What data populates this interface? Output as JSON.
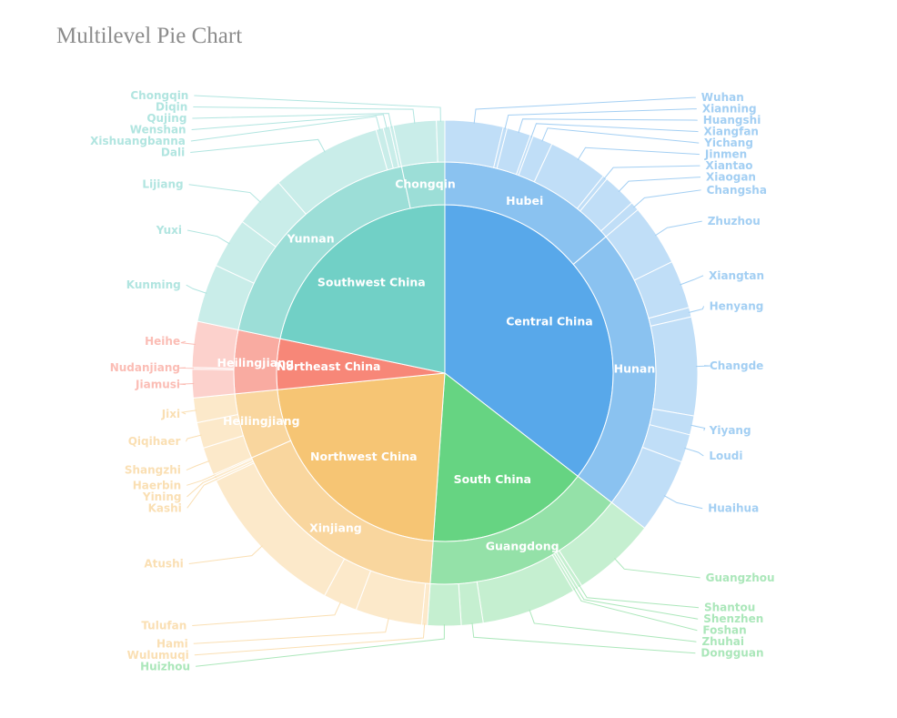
{
  "title": "Multilevel Pie Chart",
  "chart_data": {
    "type": "pie",
    "levels": [
      "region",
      "province",
      "city"
    ],
    "regions": [
      {
        "name": "Central China",
        "color": "#58a8ea",
        "provinces": [
          {
            "name": "Hubei",
            "cities": [
              {
                "name": "Wuhan",
                "value": 10.4
              },
              {
                "name": "Xianning",
                "value": 0.7
              },
              {
                "name": "Huangshi",
                "value": 4.3
              },
              {
                "name": "Xiangfan",
                "value": 0.5
              },
              {
                "name": "Yichang",
                "value": 3.6
              },
              {
                "name": "Jinmen",
                "value": 10.7
              },
              {
                "name": "Xiantao",
                "value": 0.8
              },
              {
                "name": "Xiaogan",
                "value": 6.1
              },
              {
                "name": "Changsha",
                "value": 1.6
              }
            ]
          },
          {
            "name": "Hunan",
            "cities": [
              {
                "name": "Zhuzhou",
                "value": 11.0
              },
              {
                "name": "Xiangtan",
                "value": 8.6
              },
              {
                "name": "Henyang",
                "value": 1.7
              },
              {
                "name": "Changde",
                "value": 17.6
              },
              {
                "name": "Yiyang",
                "value": 3.4
              },
              {
                "name": "Loudi",
                "value": 5.0
              },
              {
                "name": "Huaihua",
                "value": 13.4
              }
            ]
          }
        ]
      },
      {
        "name": "South China",
        "color": "#66d482",
        "provinces": [
          {
            "name": "Guangdong",
            "cities": [
              {
                "name": "Guangzhou",
                "value": 15.1
              },
              {
                "name": "Shantou",
                "value": 0.7
              },
              {
                "name": "Shenzhen",
                "value": 0.5
              },
              {
                "name": "Foshan",
                "value": 0.5
              },
              {
                "name": "Zhuhai",
                "value": 17.0
              },
              {
                "name": "Dongguan",
                "value": 3.9
              },
              {
                "name": "Huizhou",
                "value": 6.0
              }
            ]
          }
        ]
      },
      {
        "name": "Northwest China",
        "color": "#f6c574",
        "provinces": [
          {
            "name": "Xinjiang",
            "cities": [
              {
                "name": "Wulumuqi",
                "value": 1.0
              },
              {
                "name": "Hami",
                "value": 11.9
              },
              {
                "name": "Tulufan",
                "value": 6.1
              },
              {
                "name": "Atushi",
                "value": 28.3
              },
              {
                "name": "Kashi",
                "value": 0.4
              },
              {
                "name": "Yining",
                "value": 0.5
              },
              {
                "name": "Haerbin",
                "value": 0.3
              }
            ]
          },
          {
            "name": "Heilingjiang",
            "cities": [
              {
                "name": "Shangzhi",
                "value": 5.0
              },
              {
                "name": "Qiqihaer",
                "value": 4.6
              },
              {
                "name": "Jixi",
                "value": 4.4
              }
            ]
          }
        ]
      },
      {
        "name": "Northeast China",
        "color": "#f78778",
        "provinces": [
          {
            "name": "Heilingjiang",
            "cities": [
              {
                "name": "Jiamusi",
                "value": 5.1
              },
              {
                "name": "Nudanjiang",
                "value": 0.3
              },
              {
                "name": "Heihe",
                "value": 8.2
              }
            ]
          }
        ]
      },
      {
        "name": "Southwest China",
        "color": "#71d0c6",
        "provinces": [
          {
            "name": "Yunnan",
            "cities": [
              {
                "name": "Kunming",
                "value": 10.4
              },
              {
                "name": "Yuxi",
                "value": 9.0
              },
              {
                "name": "Lijiang",
                "value": 9.4
              },
              {
                "name": "Dali",
                "value": 19.7
              },
              {
                "name": "Xishuangbanna",
                "value": 1.3
              },
              {
                "name": "Wenshan",
                "value": 1.2
              },
              {
                "name": "Qujing",
                "value": 0.6
              }
            ]
          },
          {
            "name": "Chongqin",
            "cities": [
              {
                "name": "Diqin",
                "value": 7.7
              },
              {
                "name": "Chongqin",
                "value": 1.5
              }
            ]
          }
        ]
      }
    ]
  }
}
